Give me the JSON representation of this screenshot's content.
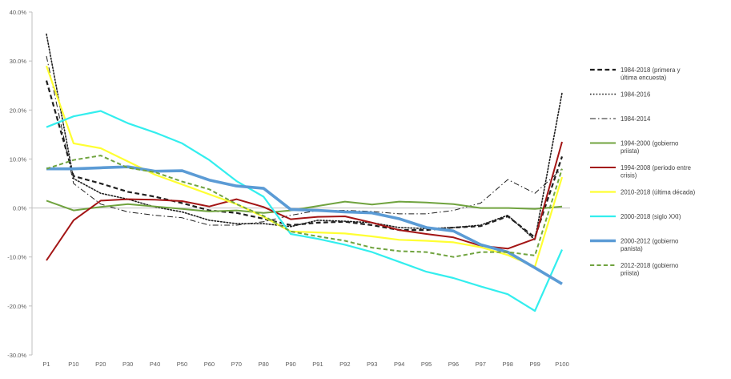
{
  "chart_data": {
    "type": "line",
    "title": "",
    "xlabel": "",
    "ylabel": "",
    "categories": [
      "P1",
      "P10",
      "P20",
      "P30",
      "P40",
      "P50",
      "P60",
      "P70",
      "P80",
      "P90",
      "P91",
      "P92",
      "P93",
      "P94",
      "P95",
      "P96",
      "P97",
      "P98",
      "P99",
      "P100"
    ],
    "y_ticks": [
      "-30.0%",
      "-20.0%",
      "-10.0%",
      "0.0%",
      "10.0%",
      "20.0%",
      "30.0%",
      "40.0%"
    ],
    "ylim": [
      -30,
      40
    ],
    "grid": false,
    "legend_position": "right",
    "series": [
      {
        "name": "1984-2018 (primera y última encuesta)",
        "color": "#1f1f1f",
        "style": "dashed",
        "width": 2.2,
        "values": [
          26,
          6.5,
          5,
          3.3,
          2.3,
          1,
          -0.5,
          -1,
          -2.2,
          -3.5,
          -3,
          -2.8,
          -3.5,
          -4.5,
          -4.5,
          -4,
          -3.7,
          -1.7,
          -6,
          10.5
        ]
      },
      {
        "name": "1984-2016",
        "color": "#1f1f1f",
        "style": "dotted",
        "width": 1.6,
        "values": [
          35.5,
          6,
          3,
          1.8,
          0.2,
          -0.8,
          -2.5,
          -3.2,
          -3.2,
          -3.8,
          -2.5,
          -2.7,
          -3,
          -4,
          -4.2,
          -4,
          -3.5,
          -1.5,
          -6.5,
          23.5
        ]
      },
      {
        "name": "1984-2014",
        "color": "#1f1f1f",
        "style": "dashdot",
        "width": 1,
        "values": [
          31,
          5,
          0.8,
          -0.8,
          -1.5,
          -2,
          -3.5,
          -3.5,
          -2.8,
          -1.5,
          -0.5,
          -0.5,
          -0.7,
          -1.2,
          -1.2,
          -0.5,
          1,
          5.8,
          3,
          8
        ]
      },
      {
        "name": "1994-2000 (gobierno priista)",
        "color": "#70a33f",
        "style": "solid",
        "width": 2,
        "values": [
          1.5,
          -0.5,
          0.2,
          0.8,
          0.3,
          -0.2,
          -0.7,
          -0.5,
          -1,
          -0.5,
          0.4,
          1.3,
          0.7,
          1.3,
          1.1,
          0.8,
          0,
          0,
          -0.2,
          0.3
        ]
      },
      {
        "name": "1994-2008 (periodo entre crisis)",
        "color": "#a31515",
        "style": "solid",
        "width": 2,
        "values": [
          -10.7,
          -2.5,
          1.5,
          1.8,
          1.7,
          1.4,
          0.3,
          1.8,
          0.2,
          -2.3,
          -1.8,
          -1.7,
          -3,
          -4.5,
          -5.3,
          -6,
          -7.7,
          -8.3,
          -6.3,
          13.5
        ]
      },
      {
        "name": "2010-2018 (última década)",
        "color": "#ffff33",
        "style": "solid",
        "width": 2.2,
        "values": [
          29,
          13.2,
          12.2,
          9.5,
          6.8,
          4.8,
          2.8,
          0.8,
          -1.8,
          -4.8,
          -5,
          -5.2,
          -5.8,
          -6.5,
          -6.7,
          -7,
          -8,
          -9.6,
          -12,
          6.3
        ]
      },
      {
        "name": "2000-2018 (siglo XXI)",
        "color": "#33eeee",
        "style": "solid",
        "width": 2.2,
        "values": [
          16.5,
          18.7,
          19.8,
          17.3,
          15.4,
          13.2,
          9.8,
          5.5,
          2.3,
          -5.3,
          -6.3,
          -7.5,
          -9,
          -11,
          -13,
          -14.3,
          -16,
          -17.6,
          -21,
          -8.5
        ]
      },
      {
        "name": "2000-2012 (gobierno panista)",
        "color": "#5b9bd5",
        "style": "solid",
        "width": 3.6,
        "values": [
          8,
          8,
          8.2,
          8.4,
          7.5,
          7.6,
          5.7,
          4.5,
          4,
          -0.3,
          -0.5,
          -0.8,
          -1,
          -2.2,
          -4,
          -4.7,
          -7.5,
          -9,
          -12.2,
          -15.5
        ]
      },
      {
        "name": "2012-2018 (gobierno priista)",
        "color": "#70a33f",
        "style": "dashed",
        "width": 2,
        "values": [
          8,
          9.8,
          10.7,
          8.2,
          7.3,
          5.4,
          3.8,
          0.8,
          -1.6,
          -4.8,
          -5.8,
          -6.7,
          -8.1,
          -8.8,
          -9,
          -10,
          -9,
          -9,
          -9.7,
          8
        ]
      }
    ]
  }
}
